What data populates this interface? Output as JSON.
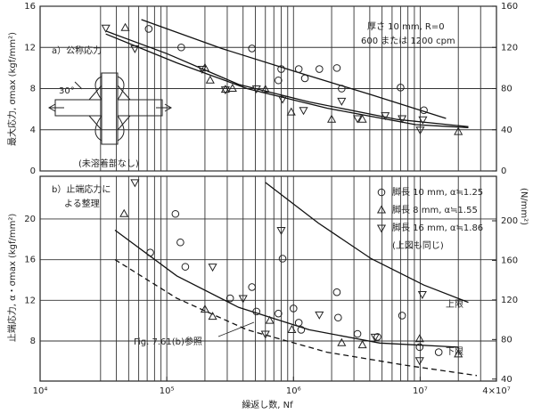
{
  "chart_data": [
    {
      "type": "scatter",
      "annotations": [
        "a）公称応力",
        "厚さ 10 mm, R=0",
        "600 または 1200 cpm",
        "(未溶着部なし)",
        "30°"
      ],
      "y_label": "最大応力, σmax (kgf/mm²)",
      "xlim": [
        10000,
        40000000
      ],
      "log_x": true,
      "xgrid": [
        30000,
        40000,
        50000,
        60000,
        70000,
        80000,
        90000,
        100000,
        200000,
        300000,
        400000,
        500000,
        600000,
        700000,
        800000,
        900000,
        1000000,
        2000000,
        3000000,
        4000000,
        5000000,
        6000000,
        7000000,
        8000000,
        9000000,
        10000000,
        20000000,
        30000000
      ],
      "ylim": [
        0,
        16
      ],
      "yticks": [
        0,
        4,
        8,
        12,
        16
      ],
      "y2lim": [
        0,
        160
      ],
      "y2ticks": [
        0,
        40,
        80,
        120,
        160
      ],
      "grid": true,
      "series": [
        {
          "marker": "circle",
          "color": "#222222",
          "x": [
            72000,
            130000,
            470000,
            800000,
            1100000,
            760000,
            1230000,
            1600000,
            2200000,
            2400000,
            7000000,
            10700000
          ],
          "values": [
            13.8,
            12.0,
            11.9,
            9.9,
            9.9,
            8.8,
            9.0,
            9.9,
            10.0,
            8.0,
            8.1,
            5.9
          ]
        },
        {
          "marker": "triangle",
          "color": "#222222",
          "x": [
            47000,
            200000,
            220000,
            290000,
            330000,
            600000,
            960000,
            2000000,
            3500000,
            20000000
          ],
          "values": [
            13.9,
            10.0,
            8.8,
            7.9,
            8.0,
            7.9,
            5.7,
            5.0,
            5.0,
            3.8
          ]
        },
        {
          "marker": "triangle-down",
          "color": "#222222",
          "x": [
            33000,
            56000,
            190000,
            290000,
            510000,
            820000,
            1200000,
            2400000,
            3200000,
            5300000,
            7200000,
            10000000,
            10500000
          ],
          "values": [
            13.9,
            11.9,
            9.9,
            7.9,
            8.0,
            7.0,
            5.9,
            6.8,
            5.1,
            5.4,
            5.1,
            4.0,
            5.0
          ]
        }
      ],
      "curves": [
        {
          "style": "solid",
          "x": [
            63000,
            270000,
            1000000,
            4100000,
            16000000
          ],
          "values": [
            14.7,
            11.9,
            9.7,
            7.4,
            5.1
          ]
        },
        {
          "style": "solid",
          "x": [
            33000,
            100000,
            370000,
            1330000,
            6600000,
            24000000
          ],
          "values": [
            13.6,
            11.4,
            8.4,
            6.7,
            5.0,
            4.3
          ]
        },
        {
          "style": "solid",
          "x": [
            33000,
            120000,
            430000,
            1840000,
            9200000,
            24000000
          ],
          "values": [
            13.3,
            10.5,
            8.0,
            6.1,
            4.5,
            4.2
          ]
        }
      ]
    },
    {
      "type": "scatter",
      "annotations": [
        "b）止端応力に",
        "よる整理",
        "上限",
        "下限",
        "Fig. 7.61(b)参照",
        "(上図も同じ)"
      ],
      "y_label": "止端応力, α・σmax (kgf/mm²)",
      "y2_label": "(N/mm²)",
      "x_label": "繰返し数, Nf",
      "xlim": [
        10000,
        40000000
      ],
      "log_x": true,
      "xticks": [
        {
          "value": 10000,
          "label": "10⁴"
        },
        {
          "value": 100000,
          "label": "10⁵"
        },
        {
          "value": 1000000,
          "label": "10⁶"
        },
        {
          "value": 10000000,
          "label": "10⁷"
        },
        {
          "value": 40000000,
          "label": "4×10⁷"
        }
      ],
      "xgrid": [
        30000,
        40000,
        50000,
        60000,
        70000,
        80000,
        90000,
        100000,
        200000,
        300000,
        400000,
        500000,
        600000,
        700000,
        800000,
        900000,
        1000000,
        2000000,
        3000000,
        4000000,
        5000000,
        6000000,
        7000000,
        8000000,
        9000000,
        10000000,
        20000000,
        30000000
      ],
      "ylim": [
        4.06,
        24.2
      ],
      "yticks": [
        8,
        12,
        16,
        20
      ],
      "y2lim": [
        38,
        245
      ],
      "y2ticks": [
        40,
        80,
        120,
        160,
        200
      ],
      "grid": true,
      "series": [
        {
          "name": "脚長 10 mm, α≒1.25",
          "marker": "circle",
          "color": "#222222",
          "x": [
            74000,
            117000,
            128000,
            140000,
            316000,
            470000,
            510000,
            760000,
            820000,
            1000000,
            1100000,
            1150000,
            2200000,
            2250000,
            3200000,
            4600000,
            7200000,
            9900000,
            14000000
          ],
          "values": [
            16.7,
            20.5,
            17.7,
            15.3,
            12.2,
            13.3,
            10.9,
            10.7,
            16.1,
            11.2,
            9.8,
            9.1,
            12.8,
            10.3,
            8.7,
            8.4,
            10.5,
            7.4,
            6.9
          ]
        },
        {
          "name": "脚長 8 mm, α≒1.55",
          "marker": "triangle",
          "color": "#222222",
          "x": [
            46000,
            200000,
            230000,
            650000,
            970000,
            2400000,
            3500000,
            9900000,
            20000000
          ],
          "values": [
            20.5,
            11.1,
            10.4,
            10.0,
            9.1,
            7.8,
            7.6,
            8.2,
            6.7
          ]
        },
        {
          "name": "脚長 16 mm, α≒1.86",
          "marker": "triangle-down",
          "color": "#222222",
          "x": [
            56000,
            230000,
            400000,
            600000,
            800000,
            1600000,
            4400000,
            9900000,
            10400000
          ],
          "values": [
            23.6,
            15.3,
            12.2,
            8.7,
            18.9,
            10.6,
            8.4,
            6.1,
            12.6
          ]
        }
      ],
      "curves": [
        {
          "style": "solid",
          "x": [
            600000,
            1570000,
            4100000,
            10700000,
            24000000
          ],
          "values": [
            23.6,
            19.6,
            16.1,
            13.5,
            11.8
          ]
        },
        {
          "style": "solid",
          "x": [
            39000,
            120000,
            370000,
            1330000,
            4800000,
            20000000
          ],
          "values": [
            18.9,
            14.4,
            11.3,
            9.1,
            7.8,
            7.4
          ]
        },
        {
          "style": "dashed",
          "x": [
            39000,
            120000,
            430000,
            1840000,
            7800000,
            28000000
          ],
          "values": [
            16.0,
            12.2,
            9.1,
            6.9,
            5.6,
            4.6
          ]
        }
      ]
    }
  ]
}
